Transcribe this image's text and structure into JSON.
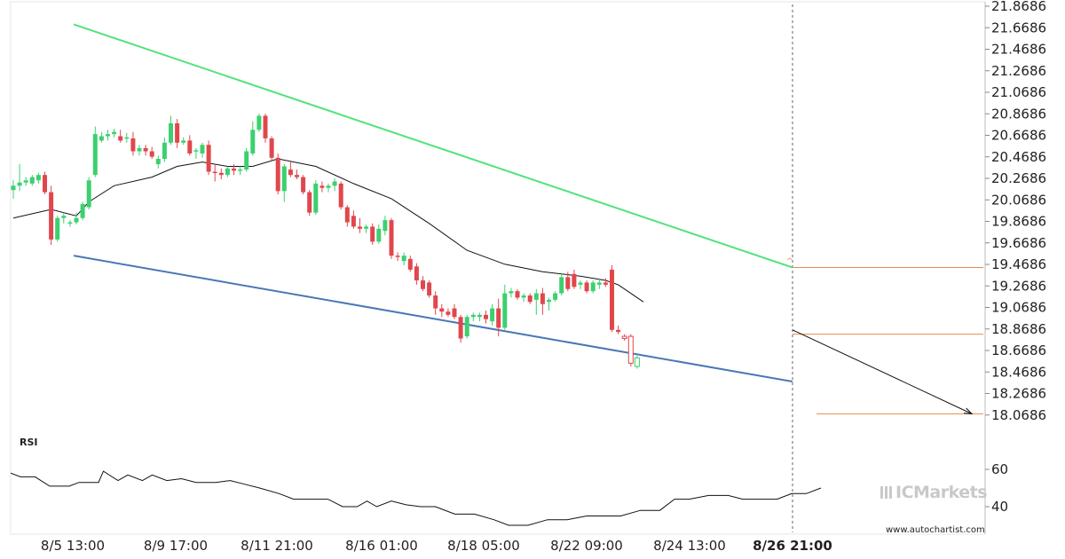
{
  "chart_data": {
    "type": "candlestick",
    "y_ticks": [
      "21.8686",
      "21.6686",
      "21.4686",
      "21.2686",
      "21.0686",
      "20.8686",
      "20.6686",
      "20.4686",
      "20.2686",
      "20.0686",
      "19.8686",
      "19.6686",
      "19.4686",
      "19.2686",
      "19.0686",
      "18.8686",
      "18.6686",
      "18.4686",
      "18.2686",
      "18.0686"
    ],
    "ylim": [
      18.0,
      21.9
    ],
    "x_ticks": [
      "8/5 13:00",
      "8/9 17:00",
      "8/11 21:00",
      "8/16 01:00",
      "8/18 05:00",
      "8/22 09:00",
      "8/24 13:00",
      "8/26 21:00"
    ],
    "x_tick_bold": "8/26 21:00",
    "candles": [
      [
        20.16,
        20.25,
        20.08,
        20.2
      ],
      [
        20.2,
        20.4,
        20.15,
        20.23
      ],
      [
        20.23,
        20.28,
        20.2,
        20.25
      ],
      [
        20.22,
        20.3,
        20.2,
        20.28
      ],
      [
        20.25,
        20.32,
        20.22,
        20.3
      ],
      [
        20.3,
        20.33,
        20.12,
        20.14
      ],
      [
        20.14,
        20.2,
        19.65,
        19.7
      ],
      [
        19.7,
        19.92,
        19.68,
        19.9
      ],
      [
        19.9,
        19.95,
        19.85,
        19.92
      ],
      [
        19.85,
        19.88,
        19.82,
        19.86
      ],
      [
        19.86,
        19.95,
        19.84,
        19.9
      ],
      [
        19.9,
        20.05,
        19.88,
        20.03
      ],
      [
        20.0,
        20.28,
        19.98,
        20.25
      ],
      [
        20.3,
        20.75,
        20.28,
        20.68
      ],
      [
        20.62,
        20.7,
        20.6,
        20.66
      ],
      [
        20.66,
        20.72,
        20.62,
        20.68
      ],
      [
        20.68,
        20.73,
        20.65,
        20.7
      ],
      [
        20.66,
        20.72,
        20.6,
        20.62
      ],
      [
        20.64,
        20.69,
        20.6,
        20.65
      ],
      [
        20.64,
        20.7,
        20.48,
        20.52
      ],
      [
        20.52,
        20.58,
        20.48,
        20.55
      ],
      [
        20.55,
        20.58,
        20.48,
        20.52
      ],
      [
        20.52,
        20.56,
        20.45,
        20.47
      ],
      [
        20.4,
        20.48,
        20.36,
        20.45
      ],
      [
        20.45,
        20.65,
        20.42,
        20.6
      ],
      [
        20.6,
        20.85,
        20.58,
        20.78
      ],
      [
        20.78,
        20.82,
        20.55,
        20.6
      ],
      [
        20.6,
        20.65,
        20.58,
        20.62
      ],
      [
        20.62,
        20.67,
        20.48,
        20.5
      ],
      [
        20.52,
        20.55,
        20.45,
        20.53
      ],
      [
        20.5,
        20.6,
        20.46,
        20.58
      ],
      [
        20.58,
        20.62,
        20.3,
        20.33
      ],
      [
        20.33,
        20.4,
        20.24,
        20.32
      ],
      [
        20.32,
        20.36,
        20.26,
        20.3
      ],
      [
        20.3,
        20.38,
        20.28,
        20.36
      ],
      [
        20.36,
        20.4,
        20.3,
        20.34
      ],
      [
        20.34,
        20.38,
        20.3,
        20.35
      ],
      [
        20.35,
        20.55,
        20.33,
        20.52
      ],
      [
        20.5,
        20.8,
        20.48,
        20.72
      ],
      [
        20.72,
        20.87,
        20.7,
        20.85
      ],
      [
        20.85,
        20.87,
        20.6,
        20.64
      ],
      [
        20.64,
        20.66,
        20.44,
        20.46
      ],
      [
        20.46,
        20.5,
        20.12,
        20.15
      ],
      [
        20.15,
        20.4,
        20.05,
        20.38
      ],
      [
        20.35,
        20.42,
        20.28,
        20.3
      ],
      [
        20.3,
        20.35,
        20.26,
        20.28
      ],
      [
        20.28,
        20.3,
        20.12,
        20.14
      ],
      [
        20.14,
        20.16,
        19.92,
        19.95
      ],
      [
        19.95,
        20.25,
        19.93,
        20.22
      ],
      [
        20.2,
        20.24,
        20.14,
        20.18
      ],
      [
        20.18,
        20.22,
        20.14,
        20.2
      ],
      [
        20.2,
        20.27,
        20.15,
        20.24
      ],
      [
        20.22,
        20.24,
        19.98,
        20.0
      ],
      [
        20.0,
        20.02,
        19.82,
        19.86
      ],
      [
        19.92,
        19.97,
        19.8,
        19.82
      ],
      [
        19.82,
        19.9,
        19.76,
        19.8
      ],
      [
        19.8,
        19.84,
        19.76,
        19.82
      ],
      [
        19.82,
        19.85,
        19.65,
        19.68
      ],
      [
        19.68,
        19.84,
        19.66,
        19.8
      ],
      [
        19.78,
        19.92,
        19.74,
        19.88
      ],
      [
        19.88,
        19.9,
        19.52,
        19.55
      ],
      [
        19.55,
        19.58,
        19.5,
        19.54
      ],
      [
        19.5,
        19.58,
        19.46,
        19.55
      ],
      [
        19.52,
        19.55,
        19.4,
        19.42
      ],
      [
        19.45,
        19.48,
        19.28,
        19.32
      ],
      [
        19.32,
        19.36,
        19.22,
        19.24
      ],
      [
        19.3,
        19.32,
        19.16,
        19.18
      ],
      [
        19.18,
        19.22,
        19.0,
        19.06
      ],
      [
        19.06,
        19.1,
        18.98,
        19.03
      ],
      [
        19.03,
        19.06,
        18.98,
        19.0
      ],
      [
        19.06,
        19.1,
        18.96,
        18.98
      ],
      [
        18.98,
        19.0,
        18.74,
        18.78
      ],
      [
        18.8,
        19.0,
        18.78,
        18.98
      ],
      [
        18.98,
        19.02,
        18.94,
        19.0
      ],
      [
        18.98,
        19.02,
        18.94,
        19.0
      ],
      [
        19.0,
        19.04,
        18.92,
        18.96
      ],
      [
        18.94,
        19.1,
        18.9,
        19.06
      ],
      [
        19.06,
        19.15,
        18.8,
        18.88
      ],
      [
        18.88,
        19.28,
        18.86,
        19.2
      ],
      [
        19.2,
        19.25,
        19.16,
        19.22
      ],
      [
        19.22,
        19.24,
        19.14,
        19.16
      ],
      [
        19.16,
        19.2,
        19.12,
        19.18
      ],
      [
        19.18,
        19.2,
        19.1,
        19.12
      ],
      [
        19.14,
        19.24,
        19.0,
        19.2
      ],
      [
        19.2,
        19.25,
        19.0,
        19.1
      ],
      [
        19.12,
        19.16,
        19.04,
        19.14
      ],
      [
        19.14,
        19.22,
        19.12,
        19.2
      ],
      [
        19.2,
        19.38,
        19.18,
        19.35
      ],
      [
        19.35,
        19.4,
        19.22,
        19.24
      ],
      [
        19.38,
        19.42,
        19.24,
        19.26
      ],
      [
        19.28,
        19.32,
        19.24,
        19.3
      ],
      [
        19.3,
        19.32,
        19.2,
        19.22
      ],
      [
        19.22,
        19.32,
        19.2,
        19.3
      ],
      [
        19.28,
        19.34,
        19.24,
        19.3
      ],
      [
        19.3,
        19.34,
        19.26,
        19.28
      ],
      [
        19.42,
        19.46,
        18.84,
        18.86
      ],
      [
        18.86,
        18.9,
        18.82,
        18.84
      ],
      [
        18.8,
        18.82,
        18.76,
        18.78
      ],
      [
        18.8,
        18.82,
        18.52,
        18.55
      ],
      [
        18.52,
        18.62,
        18.5,
        18.6
      ]
    ],
    "moving_average": [
      [
        0,
        19.9
      ],
      [
        6,
        19.98
      ],
      [
        10,
        19.92
      ],
      [
        12,
        20.05
      ],
      [
        16,
        20.2
      ],
      [
        22,
        20.28
      ],
      [
        26,
        20.38
      ],
      [
        30,
        20.42
      ],
      [
        34,
        20.38
      ],
      [
        38,
        20.38
      ],
      [
        42,
        20.45
      ],
      [
        48,
        20.38
      ],
      [
        54,
        20.22
      ],
      [
        60,
        20.08
      ],
      [
        66,
        19.85
      ],
      [
        72,
        19.6
      ],
      [
        78,
        19.47
      ],
      [
        84,
        19.4
      ],
      [
        90,
        19.36
      ],
      [
        94,
        19.32
      ],
      [
        96,
        19.28
      ],
      [
        98,
        19.2
      ],
      [
        100,
        19.12
      ]
    ],
    "rsi": {
      "label": "RSI",
      "ticks": [
        "60",
        "40"
      ],
      "ylim": [
        30,
        70
      ],
      "values": [
        [
          0,
          58
        ],
        [
          2,
          56
        ],
        [
          5,
          56
        ],
        [
          8,
          51
        ],
        [
          12,
          51
        ],
        [
          14,
          53
        ],
        [
          18,
          53
        ],
        [
          19,
          59
        ],
        [
          22,
          54
        ],
        [
          24,
          57
        ],
        [
          27,
          54
        ],
        [
          29,
          57
        ],
        [
          32,
          54
        ],
        [
          35,
          55
        ],
        [
          38,
          53
        ],
        [
          42,
          53
        ],
        [
          45,
          54
        ],
        [
          48,
          52
        ],
        [
          51,
          50
        ],
        [
          55,
          47
        ],
        [
          58,
          44
        ],
        [
          62,
          44
        ],
        [
          65,
          44
        ],
        [
          68,
          40
        ],
        [
          71,
          40
        ],
        [
          73,
          43
        ],
        [
          75,
          40
        ],
        [
          78,
          43
        ],
        [
          81,
          41
        ],
        [
          84,
          40
        ],
        [
          87,
          40
        ],
        [
          91,
          36
        ],
        [
          95,
          36
        ],
        [
          99,
          33
        ],
        [
          102,
          30
        ],
        [
          106,
          30
        ],
        [
          110,
          33
        ],
        [
          114,
          33
        ],
        [
          118,
          35
        ],
        [
          121,
          35
        ],
        [
          125,
          35
        ],
        [
          129,
          38
        ],
        [
          133,
          38
        ],
        [
          136,
          44
        ],
        [
          139,
          44
        ],
        [
          143,
          46
        ],
        [
          147,
          46
        ],
        [
          150,
          44
        ],
        [
          153,
          44
        ],
        [
          157,
          44
        ],
        [
          160,
          47
        ],
        [
          163,
          47
        ],
        [
          166,
          50
        ]
      ]
    },
    "pattern_upper": [
      [
        0,
        21.7
      ],
      [
        99,
        19.44
      ]
    ],
    "pattern_lower": [
      [
        0,
        19.55
      ],
      [
        99,
        18.38
      ]
    ],
    "forecast_arrow": [
      [
        97,
        18.86
      ],
      [
        122,
        18.08
      ]
    ],
    "level_lines": [
      19.44,
      18.82,
      18.08
    ]
  },
  "colors": {
    "bull": "#3cd070",
    "bear": "#e0474c",
    "upper_trend": "#52e37a",
    "lower_trend": "#4a77b4",
    "level": "#e8894a",
    "ma": "#111111"
  },
  "brand": "ICMarkets",
  "watermark": "www.autochartist.com"
}
